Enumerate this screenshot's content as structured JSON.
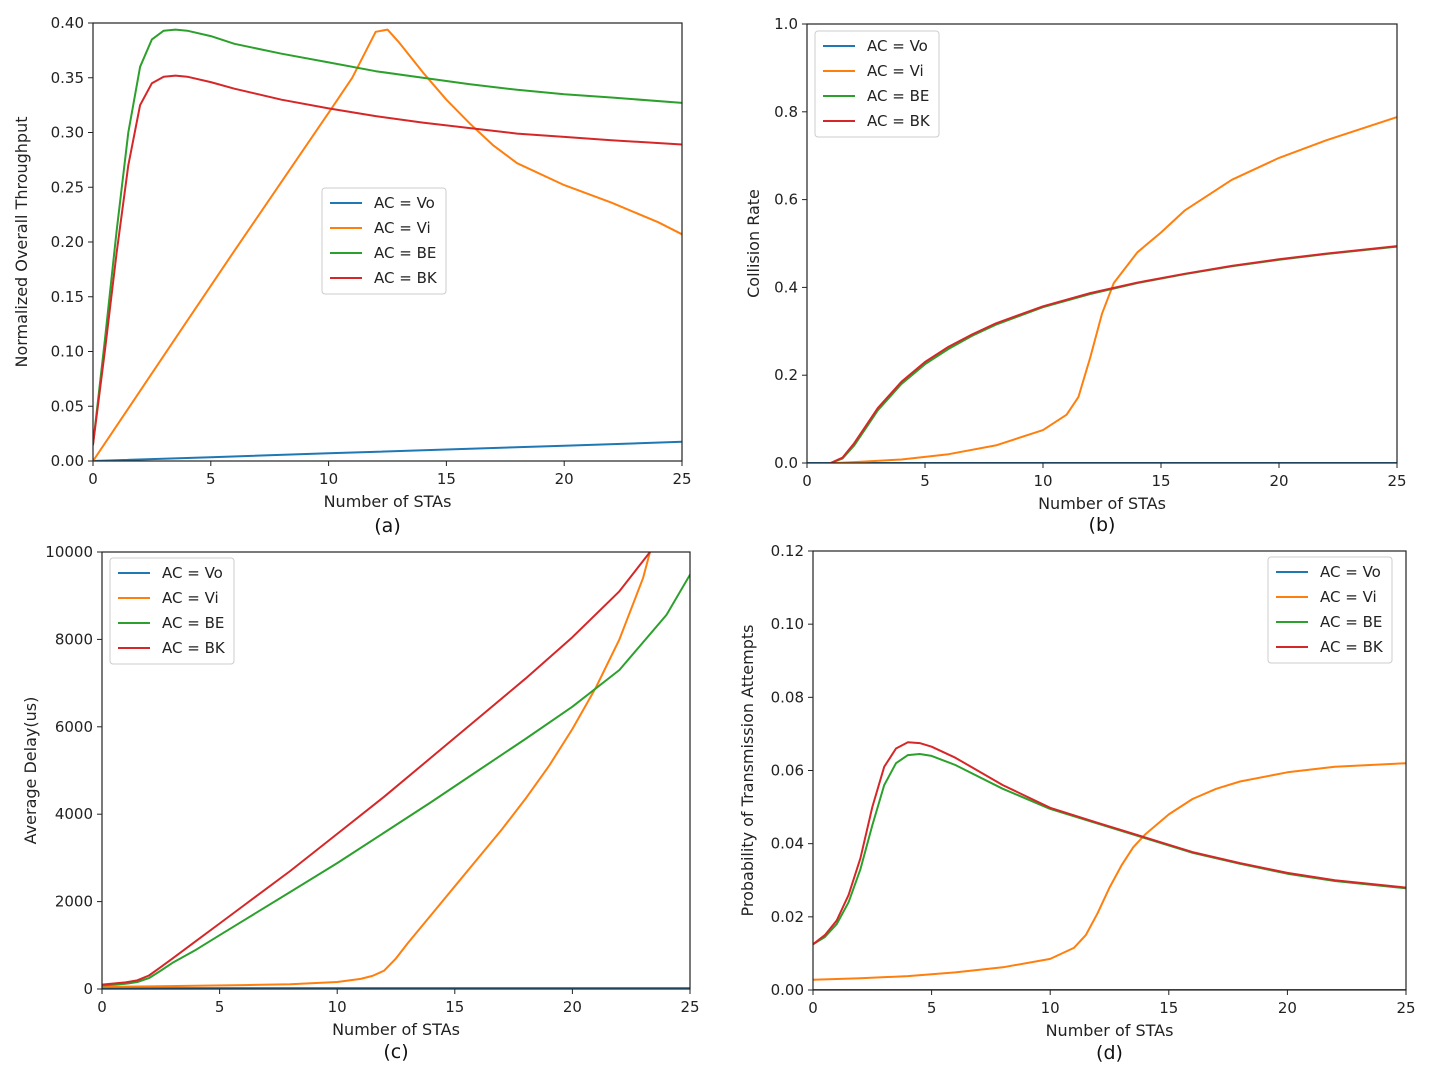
{
  "panel_captions": [
    "(a)",
    "(b)",
    "(c)",
    "(d)"
  ],
  "chart_data": [
    {
      "type": "line",
      "caption": "(a)",
      "xlabel": "Number of STAs",
      "ylabel": "Normalized Overall Throughput",
      "xlim": [
        0,
        25
      ],
      "ylim": [
        0,
        0.4
      ],
      "xticks": [
        0,
        5,
        10,
        15,
        20,
        25
      ],
      "yticks": [
        0.0,
        0.05,
        0.1,
        0.15,
        0.2,
        0.25,
        0.3,
        0.35,
        0.4
      ],
      "ytick_labels": [
        "0.00",
        "0.05",
        "0.10",
        "0.15",
        "0.20",
        "0.25",
        "0.30",
        "0.35",
        "0.40"
      ],
      "grid": false,
      "legend": "center",
      "series": [
        {
          "name": "AC = Vo",
          "color": "#1f77b4",
          "x": [
            0,
            5,
            10,
            15,
            20,
            25
          ],
          "y": [
            0.0,
            0.0035,
            0.007,
            0.0105,
            0.014,
            0.0175
          ]
        },
        {
          "name": "AC = Vi",
          "color": "#ff7f0e",
          "x": [
            0,
            2,
            4,
            6,
            8,
            10,
            11,
            12,
            12.5,
            13,
            14,
            15,
            16,
            17,
            18,
            20,
            22,
            24,
            25
          ],
          "y": [
            0.0,
            0.064,
            0.128,
            0.192,
            0.255,
            0.318,
            0.35,
            0.392,
            0.394,
            0.382,
            0.355,
            0.33,
            0.308,
            0.288,
            0.272,
            0.252,
            0.236,
            0.218,
            0.207
          ]
        },
        {
          "name": "AC = BE",
          "color": "#2ca02c",
          "x": [
            0,
            0.5,
            1,
            1.5,
            2,
            2.5,
            3,
            3.5,
            4,
            5,
            6,
            8,
            10,
            12,
            14,
            16,
            18,
            20,
            22,
            25
          ],
          "y": [
            0.015,
            0.11,
            0.21,
            0.3,
            0.36,
            0.385,
            0.393,
            0.394,
            0.393,
            0.388,
            0.381,
            0.372,
            0.364,
            0.356,
            0.35,
            0.344,
            0.339,
            0.335,
            0.332,
            0.327
          ]
        },
        {
          "name": "AC = BK",
          "color": "#d62728",
          "x": [
            0,
            0.5,
            1,
            1.5,
            2,
            2.5,
            3,
            3.5,
            4,
            5,
            6,
            8,
            10,
            12,
            14,
            16,
            18,
            20,
            22,
            25
          ],
          "y": [
            0.015,
            0.1,
            0.19,
            0.27,
            0.325,
            0.345,
            0.351,
            0.352,
            0.351,
            0.346,
            0.34,
            0.33,
            0.322,
            0.315,
            0.309,
            0.304,
            0.299,
            0.296,
            0.293,
            0.289
          ]
        }
      ]
    },
    {
      "type": "line",
      "caption": "(b)",
      "xlabel": "Number of STAs",
      "ylabel": "Collision Rate",
      "xlim": [
        0,
        25
      ],
      "ylim": [
        0,
        1.0
      ],
      "xticks": [
        0,
        5,
        10,
        15,
        20,
        25
      ],
      "yticks": [
        0.0,
        0.2,
        0.4,
        0.6,
        0.8,
        1.0
      ],
      "ytick_labels": [
        "0.0",
        "0.2",
        "0.4",
        "0.6",
        "0.8",
        "1.0"
      ],
      "grid": false,
      "legend": "top-left",
      "series": [
        {
          "name": "AC = Vo",
          "color": "#1f77b4",
          "x": [
            0,
            25
          ],
          "y": [
            0.0,
            0.0
          ]
        },
        {
          "name": "AC = Vi",
          "color": "#ff7f0e",
          "x": [
            1.2,
            2,
            4,
            6,
            8,
            10,
            11,
            11.5,
            12,
            12.5,
            13,
            14,
            15,
            16,
            18,
            20,
            22,
            25
          ],
          "y": [
            0.0,
            0.002,
            0.008,
            0.02,
            0.04,
            0.075,
            0.11,
            0.15,
            0.24,
            0.34,
            0.41,
            0.48,
            0.525,
            0.575,
            0.645,
            0.695,
            0.735,
            0.788
          ]
        },
        {
          "name": "AC = BE",
          "color": "#2ca02c",
          "x": [
            1,
            1.5,
            2,
            2.5,
            3,
            4,
            5,
            6,
            7,
            8,
            10,
            12,
            14,
            16,
            18,
            20,
            22,
            25
          ],
          "y": [
            0.0,
            0.01,
            0.04,
            0.08,
            0.12,
            0.18,
            0.225,
            0.26,
            0.29,
            0.315,
            0.355,
            0.385,
            0.41,
            0.43,
            0.448,
            0.463,
            0.476,
            0.493
          ]
        },
        {
          "name": "AC = BK",
          "color": "#d62728",
          "x": [
            1,
            1.5,
            2,
            2.5,
            3,
            4,
            5,
            6,
            7,
            8,
            10,
            12,
            14,
            16,
            18,
            20,
            22,
            25
          ],
          "y": [
            0.0,
            0.012,
            0.045,
            0.085,
            0.125,
            0.185,
            0.23,
            0.265,
            0.293,
            0.318,
            0.357,
            0.387,
            0.411,
            0.431,
            0.449,
            0.464,
            0.477,
            0.494
          ]
        }
      ]
    },
    {
      "type": "line",
      "caption": "(c)",
      "xlabel": "Number of STAs",
      "ylabel": "Average Delay(us)",
      "xlim": [
        0,
        25
      ],
      "ylim": [
        0,
        10000
      ],
      "xticks": [
        0,
        5,
        10,
        15,
        20,
        25
      ],
      "yticks": [
        0,
        2000,
        4000,
        6000,
        8000,
        10000
      ],
      "ytick_labels": [
        "0",
        "2000",
        "4000",
        "6000",
        "8000",
        "10000"
      ],
      "grid": false,
      "legend": "top-left",
      "series": [
        {
          "name": "AC = Vo",
          "color": "#1f77b4",
          "x": [
            0,
            25
          ],
          "y": [
            20,
            20
          ]
        },
        {
          "name": "AC = Vi",
          "color": "#ff7f0e",
          "x": [
            0,
            2,
            4,
            6,
            8,
            10,
            11,
            11.5,
            12,
            12.5,
            13,
            14,
            15,
            16,
            17,
            18,
            19,
            20,
            21,
            22,
            23,
            23.3
          ],
          "y": [
            50,
            60,
            75,
            90,
            110,
            160,
            230,
            300,
            420,
            700,
            1050,
            1700,
            2350,
            3000,
            3650,
            4350,
            5100,
            5950,
            6900,
            8000,
            9400,
            10000
          ]
        },
        {
          "name": "AC = BE",
          "color": "#2ca02c",
          "x": [
            0,
            1,
            1.5,
            2,
            2.5,
            3,
            4,
            5,
            6,
            8,
            10,
            12,
            14,
            16,
            18,
            20,
            22,
            24,
            25
          ],
          "y": [
            80,
            120,
            160,
            250,
            420,
            600,
            900,
            1230,
            1560,
            2220,
            2880,
            3580,
            4280,
            5000,
            5720,
            6460,
            7300,
            8560,
            9480
          ]
        },
        {
          "name": "AC = BK",
          "color": "#d62728",
          "x": [
            0,
            1,
            1.5,
            2,
            2.5,
            3,
            4,
            5,
            6,
            8,
            10,
            12,
            14,
            16,
            18,
            20,
            22,
            23.3
          ],
          "y": [
            100,
            150,
            200,
            310,
            500,
            700,
            1100,
            1500,
            1900,
            2700,
            3550,
            4400,
            5300,
            6200,
            7100,
            8050,
            9100,
            10000
          ]
        }
      ]
    },
    {
      "type": "line",
      "caption": "(d)",
      "xlabel": "Number of STAs",
      "ylabel": "Probability of Transmission Attempts",
      "xlim": [
        0,
        25
      ],
      "ylim": [
        0,
        0.12
      ],
      "xticks": [
        0,
        5,
        10,
        15,
        20,
        25
      ],
      "yticks": [
        0.0,
        0.02,
        0.04,
        0.06,
        0.08,
        0.1,
        0.12
      ],
      "ytick_labels": [
        "0.00",
        "0.02",
        "0.04",
        "0.06",
        "0.08",
        "0.10",
        "0.12"
      ],
      "grid": false,
      "legend": "top-right",
      "series": [
        {
          "name": "AC = Vo",
          "color": "#1f77b4",
          "x": [
            0,
            25
          ],
          "y": [
            0.0,
            0.0
          ]
        },
        {
          "name": "AC = Vi",
          "color": "#ff7f0e",
          "x": [
            0,
            2,
            4,
            6,
            8,
            10,
            11,
            11.5,
            12,
            12.5,
            13,
            13.5,
            14,
            15,
            16,
            17,
            18,
            20,
            22,
            25
          ],
          "y": [
            0.0028,
            0.0032,
            0.0038,
            0.0048,
            0.0062,
            0.0085,
            0.0115,
            0.015,
            0.021,
            0.028,
            0.034,
            0.039,
            0.0425,
            0.048,
            0.0522,
            0.055,
            0.057,
            0.0595,
            0.061,
            0.062
          ]
        },
        {
          "name": "AC = BE",
          "color": "#2ca02c",
          "x": [
            0,
            0.5,
            1,
            1.5,
            2,
            2.5,
            3,
            3.5,
            4,
            4.5,
            5,
            6,
            8,
            10,
            12,
            14,
            16,
            18,
            20,
            22,
            25
          ],
          "y": [
            0.0125,
            0.0145,
            0.018,
            0.024,
            0.033,
            0.045,
            0.056,
            0.062,
            0.0642,
            0.0645,
            0.064,
            0.0615,
            0.055,
            0.0495,
            0.0455,
            0.0415,
            0.0375,
            0.0345,
            0.0318,
            0.0298,
            0.0278
          ]
        },
        {
          "name": "AC = BK",
          "color": "#d62728",
          "x": [
            0,
            0.5,
            1,
            1.5,
            2,
            2.5,
            3,
            3.5,
            4,
            4.5,
            5,
            6,
            8,
            10,
            12,
            14,
            16,
            18,
            20,
            22,
            25
          ],
          "y": [
            0.0125,
            0.015,
            0.019,
            0.026,
            0.036,
            0.05,
            0.061,
            0.066,
            0.0677,
            0.0675,
            0.0665,
            0.0635,
            0.056,
            0.0498,
            0.0457,
            0.0417,
            0.0377,
            0.0347,
            0.032,
            0.03,
            0.028
          ]
        }
      ]
    }
  ]
}
